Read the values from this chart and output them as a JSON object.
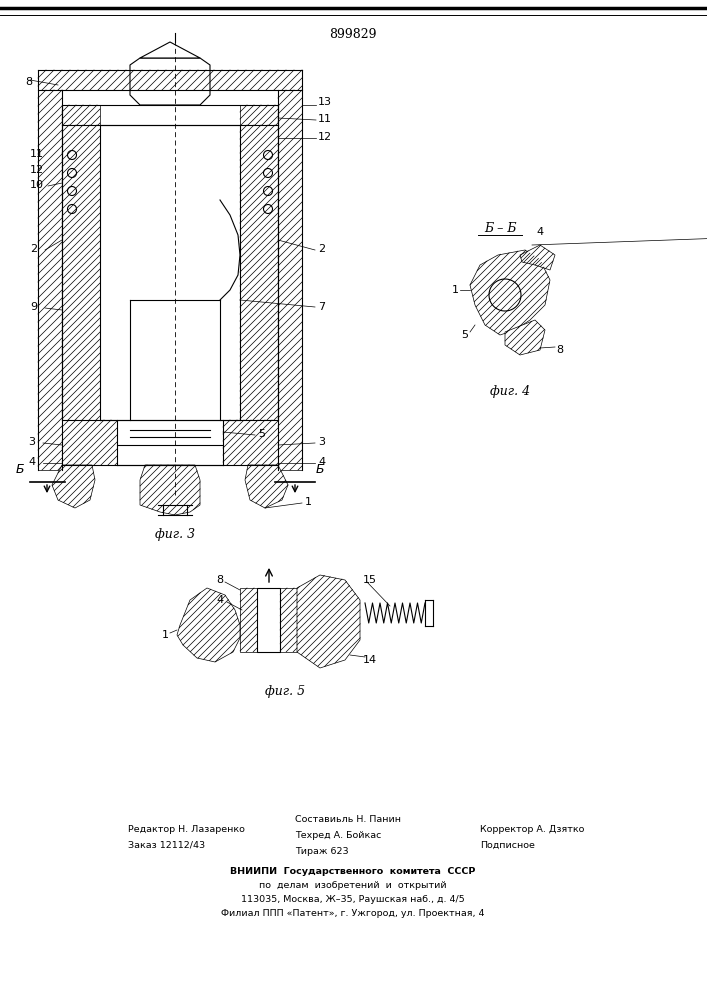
{
  "patent_number": "899829",
  "bg": "#ffffff",
  "lc": "#000000",
  "fig3_caption": "фиг. 3",
  "fig4_caption": "фиг. 4",
  "fig5_caption": "фиг. 5",
  "fig4_label": "Б – Б",
  "footer_col1_line1": "Редактор Н. Лазаренко",
  "footer_col1_line2": "Заказ 12112/43",
  "footer_col2_line1": "Составиьль Н. Панин",
  "footer_col2_line2": "Техред А. Бойкас",
  "footer_col2_line3": "Тираж 623",
  "footer_col3_line1": "Корректор А. Дзятко",
  "footer_col3_line2": "Подписное",
  "footer_vnipi1": "ВНИИПИ  Государственного  комитета  СССР",
  "footer_vnipi2": "по  делам  изобретений  и  открытий",
  "footer_vnipi3": "113035, Москва, Ж–35, Раушская наб., д. 4/5",
  "footer_vnipi4": "Филиал ППП «Патент», г. Ужгород, ул. Проектная, 4"
}
